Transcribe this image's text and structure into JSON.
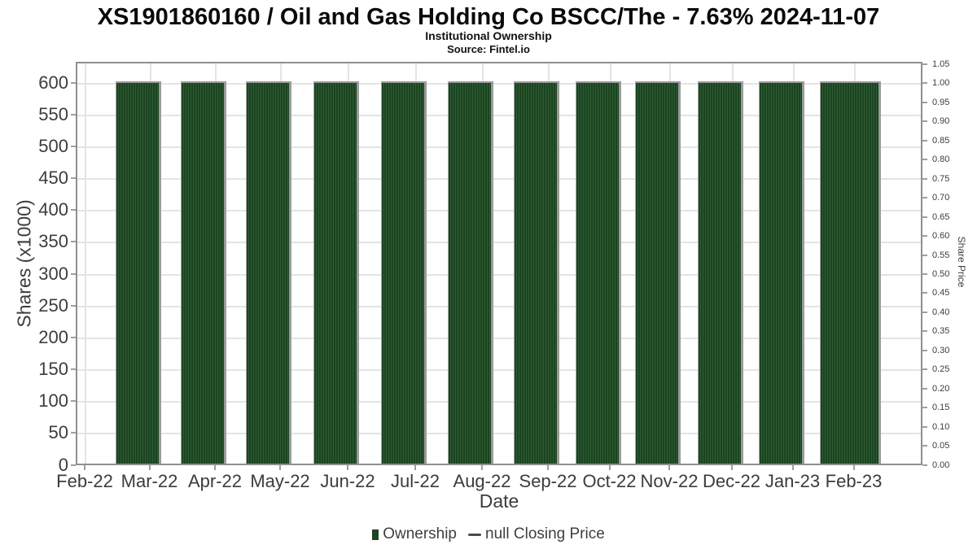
{
  "title": "XS1901860160 / Oil and Gas Holding Co BSCC/The - 7.63% 2024-11-07",
  "subtitle": "Institutional Ownership",
  "source": "Source: Fintel.io",
  "axes": {
    "x": {
      "label": "Date",
      "tick_labels": [
        "Feb-22",
        "Mar-22",
        "Apr-22",
        "May-22",
        "Jun-22",
        "Jul-22",
        "Aug-22",
        "Sep-22",
        "Oct-22",
        "Nov-22",
        "Dec-22",
        "Jan-23",
        "Feb-23"
      ]
    },
    "y_left": {
      "label": "Shares (x1000)",
      "tick_labels": [
        "0",
        "50",
        "100",
        "150",
        "200",
        "250",
        "300",
        "350",
        "400",
        "450",
        "500",
        "550",
        "600"
      ]
    },
    "y_right": {
      "label": "Share Price",
      "tick_labels": [
        "0.00",
        "0.05",
        "0.10",
        "0.15",
        "0.20",
        "0.25",
        "0.30",
        "0.35",
        "0.40",
        "0.45",
        "0.50",
        "0.55",
        "0.60",
        "0.65",
        "0.70",
        "0.75",
        "0.80",
        "0.85",
        "0.90",
        "0.95",
        "1.00",
        "1.05"
      ]
    }
  },
  "legend": {
    "items": [
      {
        "label": "Ownership",
        "marker": "square",
        "color": "#1c4522"
      },
      {
        "label": "null Closing Price",
        "marker": "line",
        "color": "#4a4a4a"
      }
    ]
  },
  "colors": {
    "bar": "#1b4420",
    "bar_stripe": "#2f5c35",
    "bar_edge": "#9b9b9b",
    "grid": "#e4e4e4",
    "axis_border": "#8f8f8f",
    "tick_text": "#3c3c3c",
    "legend_text": "#3f3f3f"
  },
  "chart_data": {
    "type": "bar",
    "title": "XS1901860160 / Oil and Gas Holding Co BSCC/The - 7.63% 2024-11-07",
    "subtitle": "Institutional Ownership",
    "source": "Source: Fintel.io",
    "categories": [
      "Mar-22",
      "Apr-22",
      "May-22",
      "Jun-22",
      "Jul-22",
      "Aug-22",
      "Sep-22",
      "Oct-22",
      "Nov-22",
      "Dec-22",
      "Jan-23",
      "Feb-23"
    ],
    "series": [
      {
        "name": "Ownership",
        "axis": "left",
        "unit": "shares x1000",
        "values": [
          602,
          602,
          602,
          602,
          602,
          602,
          602,
          602,
          602,
          602,
          602,
          602
        ]
      },
      {
        "name": "null Closing Price",
        "axis": "right",
        "values": [
          null,
          null,
          null,
          null,
          null,
          null,
          null,
          null,
          null,
          null,
          null,
          null
        ]
      }
    ],
    "xlabel": "Date",
    "ylabel": "Shares (x1000)",
    "ylabel_right": "Share Price",
    "ylim_left": [
      0,
      600
    ],
    "ylim_right": [
      0.0,
      1.05
    ],
    "x_tick_labels": [
      "Feb-22",
      "Mar-22",
      "Apr-22",
      "May-22",
      "Jun-22",
      "Jul-22",
      "Aug-22",
      "Sep-22",
      "Oct-22",
      "Nov-22",
      "Dec-22",
      "Jan-23",
      "Feb-23"
    ],
    "grid": true,
    "legend_position": "bottom",
    "note": "Monthly ownership bars drawn as dense daily sub-bars; closing price line is null (not plotted)."
  }
}
